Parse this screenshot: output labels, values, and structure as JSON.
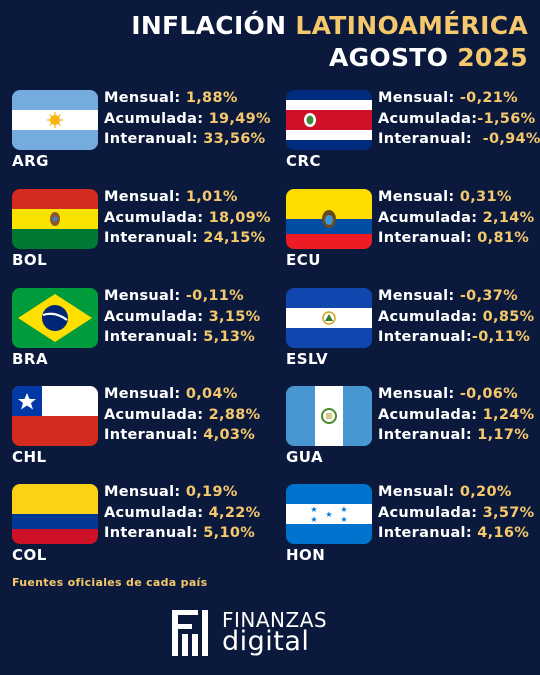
{
  "header": {
    "title_part1": "INFLACIÓN",
    "title_part2": "LATINOAMÉRICA",
    "title_part3": "AGOSTO",
    "title_part4": "2025"
  },
  "labels": {
    "mensual": "Mensual:",
    "acumulada": "Acumulada:",
    "interanual": "Interanual:"
  },
  "countries": [
    {
      "code": "ARG",
      "flag": "argentina-flag",
      "mensual": "1,88%",
      "acumulada": "19,49%",
      "interanual": "33,56%"
    },
    {
      "code": "CRC",
      "flag": "costa-rica-flag",
      "mensual": "-0,21%",
      "acumulada": "-1,56%",
      "interanual": "-0,94%"
    },
    {
      "code": "BOL",
      "flag": "bolivia-flag",
      "mensual": "1,01%",
      "acumulada": "18,09%",
      "interanual": "24,15%"
    },
    {
      "code": "ECU",
      "flag": "ecuador-flag",
      "mensual": "0,31%",
      "acumulada": "2,14%",
      "interanual": "0,81%"
    },
    {
      "code": "BRA",
      "flag": "brazil-flag",
      "mensual": "-0,11%",
      "acumulada": "3,15%",
      "interanual": "5,13%"
    },
    {
      "code": "ESLV",
      "flag": "el-salvador-flag",
      "mensual": "-0,37%",
      "acumulada": "0,85%",
      "interanual": "-0,11%"
    },
    {
      "code": "CHL",
      "flag": "chile-flag",
      "mensual": "0,04%",
      "acumulada": "2,88%",
      "interanual": "4,03%"
    },
    {
      "code": "GUA",
      "flag": "guatemala-flag",
      "mensual": "-0,06%",
      "acumulada": "1,24%",
      "interanual": "1,17%"
    },
    {
      "code": "COL",
      "flag": "colombia-flag",
      "mensual": "0,19%",
      "acumulada": "4,22%",
      "interanual": "5,10%"
    },
    {
      "code": "HON",
      "flag": "honduras-flag",
      "mensual": "0,20%",
      "acumulada": "3,57%",
      "interanual": "4,16%"
    }
  ],
  "footer": {
    "sources": "Fuentes oficiales de cada país",
    "logo_top": "FINANZAS",
    "logo_bottom": "digital"
  },
  "colors": {
    "background": "#0b1a3c",
    "accent": "#f5c86b",
    "text": "#ffffff"
  }
}
